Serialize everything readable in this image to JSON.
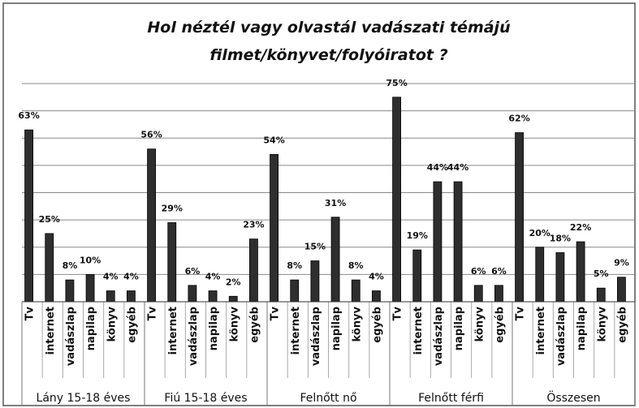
{
  "chart_data": {
    "type": "bar",
    "title": [
      "Hol néztél vagy olvastál vadászati témájú",
      "filmet/könyvet/folyóiratot  ?"
    ],
    "color": "#2e2e2e",
    "ylim": [
      0,
      80
    ],
    "yticks": [
      0,
      10,
      20,
      30,
      40,
      50,
      60,
      70,
      80
    ],
    "grid": true,
    "groups": [
      {
        "name": "Lány 15-18 éves",
        "categories": [
          "Tv",
          "internet",
          "vadászlap",
          "napilap",
          "könyv",
          "egyéb"
        ],
        "values": [
          63,
          25,
          8,
          10,
          4,
          4
        ],
        "value_labels": [
          "63%",
          "25%",
          "8%",
          "10%",
          "4%",
          "4%"
        ]
      },
      {
        "name": "Fiú 15-18 éves",
        "categories": [
          "Tv",
          "internet",
          "vadászlap",
          "napilap",
          "könyv",
          "egyéb"
        ],
        "values": [
          56,
          29,
          6,
          4,
          2,
          23
        ],
        "value_labels": [
          "56%",
          "29%",
          "6%",
          "4%",
          "2%",
          "23%"
        ]
      },
      {
        "name": "Felnőtt nő",
        "categories": [
          "Tv",
          "internet",
          "vadászlap",
          "napilap",
          "könyv",
          "egyéb"
        ],
        "values": [
          54,
          8,
          15,
          31,
          8,
          4
        ],
        "value_labels": [
          "54%",
          "8%",
          "15%",
          "31%",
          "8%",
          "4%"
        ]
      },
      {
        "name": "Felnőtt férfi",
        "categories": [
          "Tv",
          "internet",
          "vadászlap",
          "napilap",
          "könyv",
          "egyéb"
        ],
        "values": [
          75,
          19,
          44,
          44,
          6,
          6
        ],
        "value_labels": [
          "75%",
          "19%",
          "44%",
          "44%",
          "6%",
          "6%"
        ]
      },
      {
        "name": "Összesen",
        "categories": [
          "Tv",
          "internet",
          "vadászlap",
          "napilap",
          "könyv",
          "egyéb"
        ],
        "values": [
          62,
          20,
          18,
          22,
          5,
          9
        ],
        "value_labels": [
          "62%",
          "20%",
          "18%",
          "22%",
          "5%",
          "9%"
        ]
      }
    ]
  }
}
